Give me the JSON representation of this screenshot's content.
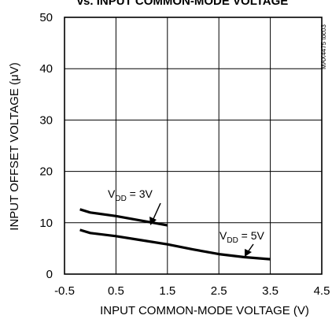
{
  "chart_data": {
    "type": "line",
    "title": "vs. INPUT COMMON-MODE VOLTAGE",
    "xlabel": "INPUT COMMON-MODE VOLTAGE (V)",
    "ylabel": "INPUT OFFSET VOLTAGE (μV)",
    "xlim": [
      -0.5,
      4.5
    ],
    "ylim": [
      0,
      50
    ],
    "x_ticks": [
      "-0.5",
      "0.5",
      "1.5",
      "2.5",
      "3.5",
      "4.5"
    ],
    "y_ticks": [
      "0",
      "10",
      "20",
      "30",
      "40",
      "50"
    ],
    "grid": true,
    "figure_id": "MAX4475 toc03",
    "series": [
      {
        "name": "VDD = 3V",
        "x": [
          -0.2,
          0.0,
          0.5,
          1.0,
          1.5
        ],
        "y": [
          12.6,
          12.0,
          11.3,
          10.4,
          9.5
        ]
      },
      {
        "name": "VDD = 5V",
        "x": [
          -0.2,
          0.0,
          0.5,
          1.0,
          1.5,
          2.0,
          2.5,
          3.0,
          3.5
        ],
        "y": [
          8.6,
          8.0,
          7.4,
          6.6,
          5.8,
          4.8,
          3.9,
          3.3,
          2.9
        ]
      }
    ],
    "annotations": [
      {
        "main": "V",
        "sub": "DD",
        "rest": " = 3V"
      },
      {
        "main": "V",
        "sub": "DD",
        "rest": " = 5V"
      }
    ]
  }
}
